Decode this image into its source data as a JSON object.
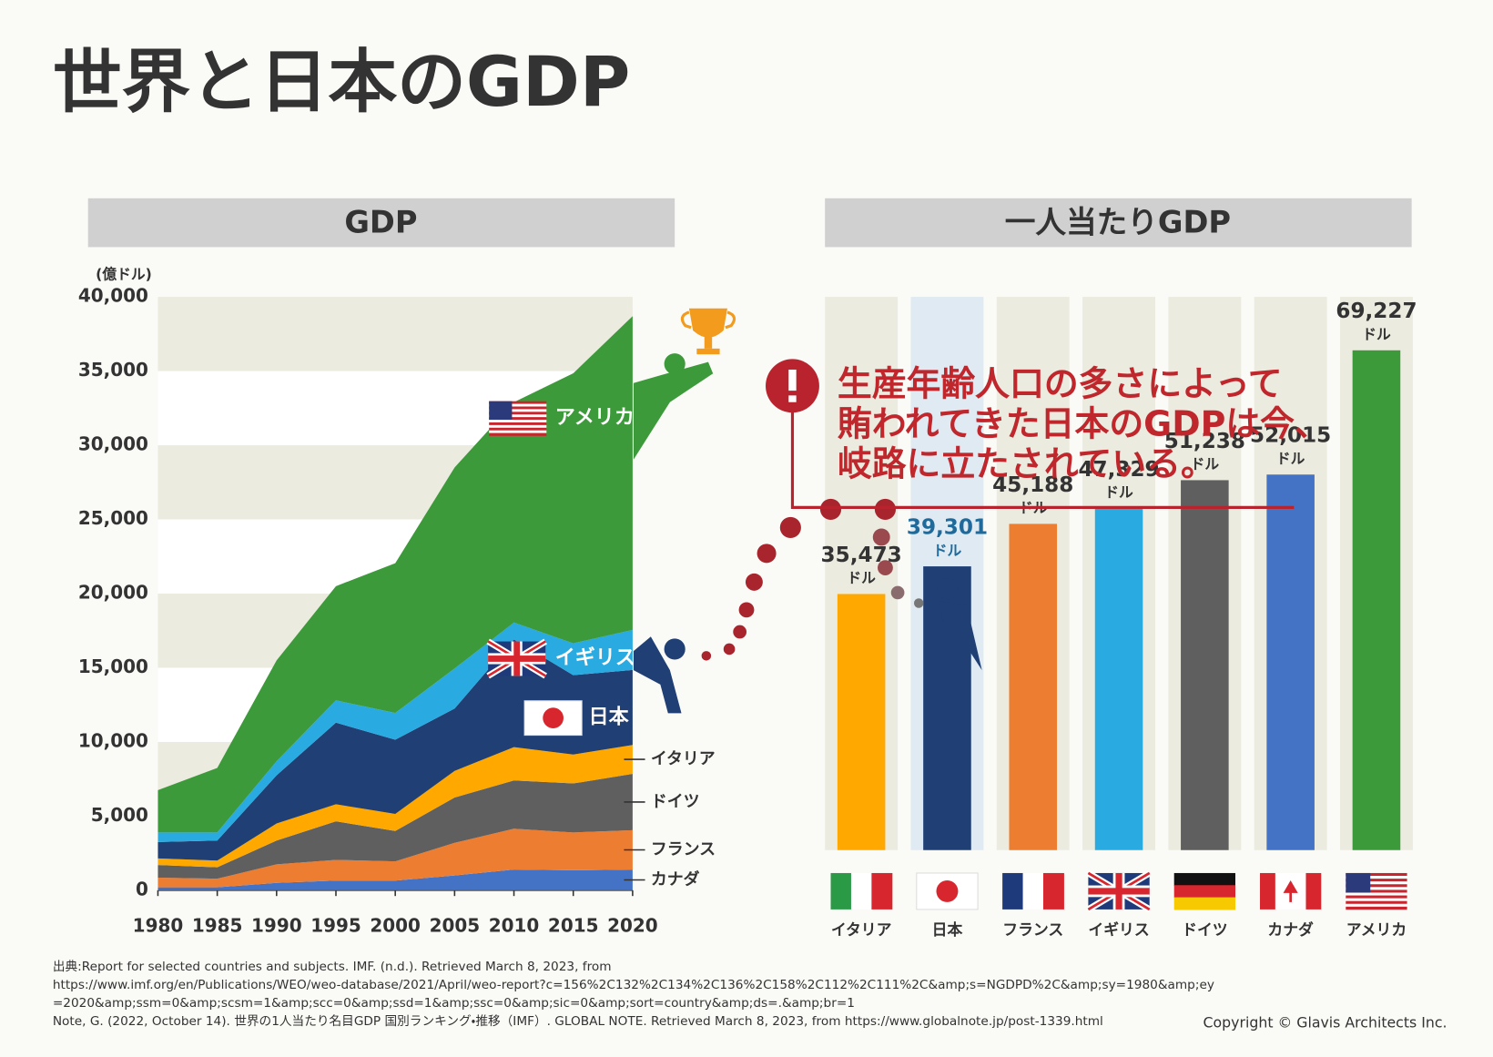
{
  "page_title": "世界と日本のGDP",
  "callout": [
    "生産年齢人口の多さによって",
    "賄われてきた日本のGDPは今、",
    "岐路に立たされている。"
  ],
  "sources": [
    "出典:Report for selected countries and subjects. IMF. (n.d.). Retrieved March 8, 2023, from",
    "https://www.imf.org/en/Publications/WEO/weo-database/2021/April/weo-report?c=156%2C132%2C134%2C136%2C158%2C112%2C111%2C&amp;s=NGDPD%2C&amp;sy=1980&amp;ey",
    "=2020&amp;ssm=0&amp;scsm=1&amp;scc=0&amp;ssd=1&amp;ssc=0&amp;sic=0&amp;sort=country&amp;ds=.&amp;br=1",
    "Note, G. (2022, October 14). 世界の1人当たり名目GDP 国別ランキング・推移（IMF）. GLOBAL NOTE. Retrieved March 8, 2023, from https://www.globalnote.jp/post-1339.html"
  ],
  "copyright": "Copyright © Glavis Architects Inc.",
  "chart_data": [
    {
      "type": "stacked_area",
      "title": "GDP",
      "ylabel": "(億ドル)",
      "x": [
        1980,
        1985,
        1990,
        1995,
        2000,
        2005,
        2010,
        2015,
        2020
      ],
      "xlim": [
        1980,
        2020
      ],
      "xticks": [
        1980,
        1985,
        1990,
        1995,
        2000,
        2005,
        2010,
        2015,
        2020
      ],
      "ylim": [
        0,
        40000
      ],
      "yticks": [
        0,
        {
          "value": 5000,
          "label": "5,000"
        },
        {
          "value": 10000,
          "label": "10,000"
        },
        {
          "value": 15000,
          "label": "15,000"
        },
        {
          "value": 20000,
          "label": "20,000"
        },
        {
          "value": 25000,
          "label": "25,000"
        },
        {
          "value": 30000,
          "label": "30,000"
        },
        {
          "value": 35000,
          "label": "35,000"
        },
        {
          "value": 40000,
          "label": "40,000"
        }
      ],
      "grid": true,
      "series": [
        {
          "name": "カナダ",
          "color": "#4472c4",
          "values": [
            200,
            200,
            500,
            650,
            650,
            1000,
            1400,
            1350,
            1400
          ]
        },
        {
          "name": "フランス",
          "color": "#ed7d31",
          "values": [
            650,
            580,
            1250,
            1400,
            1300,
            2200,
            2750,
            2550,
            2650
          ]
        },
        {
          "name": "ドイツ",
          "color": "#5f5f5f",
          "values": [
            850,
            770,
            1600,
            2600,
            2050,
            3050,
            3250,
            3300,
            3800
          ]
        },
        {
          "name": "イタリア",
          "color": "#ffa800",
          "values": [
            450,
            450,
            1150,
            1150,
            1150,
            1800,
            2250,
            1950,
            1950
          ]
        },
        {
          "name": "日本",
          "color": "#1f3f75",
          "values": [
            1100,
            1350,
            3250,
            5500,
            5000,
            4200,
            7250,
            5350,
            5050
          ]
        },
        {
          "name": "イギリス",
          "color": "#29abe2",
          "values": [
            650,
            550,
            950,
            1500,
            1800,
            2700,
            1150,
            2150,
            2700
          ]
        },
        {
          "name": "アメリカ",
          "color": "#3d9a3a",
          "values": [
            2850,
            4350,
            6800,
            7700,
            10100,
            13550,
            14850,
            18200,
            21150
          ]
        }
      ]
    },
    {
      "type": "bar",
      "title": "一人当たりGDP",
      "value_unit": "ドル",
      "categories": [
        "イタリア",
        "日本",
        "フランス",
        "イギリス",
        "ドイツ",
        "カナダ",
        "アメリカ"
      ],
      "values": [
        35473,
        39301,
        45188,
        47329,
        51238,
        52015,
        69227
      ],
      "value_labels": [
        "35,473",
        "39,301",
        "45,188",
        "47,329",
        "51,238",
        "52,015",
        "69,227"
      ],
      "colors": [
        "#ffa800",
        "#1f3f75",
        "#ed7d31",
        "#29abe2",
        "#5f5f5f",
        "#4472c4",
        "#3d9a3a"
      ],
      "ylim": [
        0,
        70000
      ]
    }
  ]
}
